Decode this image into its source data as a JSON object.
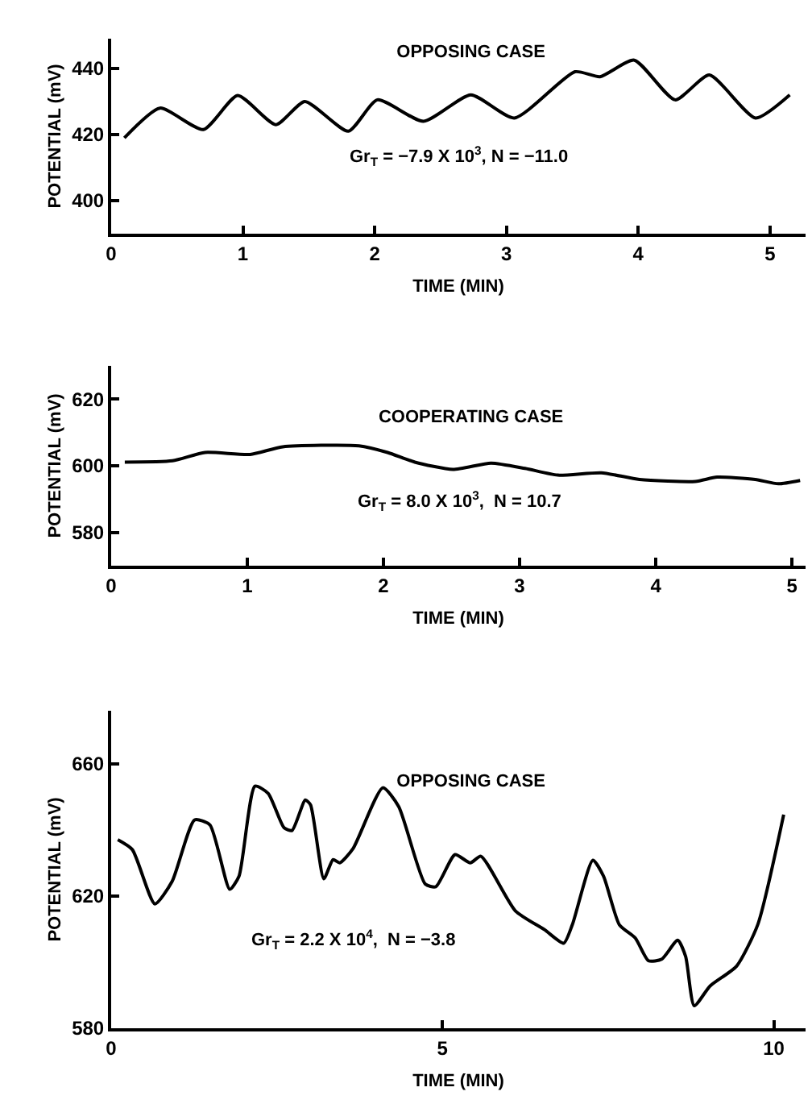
{
  "chart_data": [
    {
      "type": "line",
      "title": "OPPOSING CASE",
      "xlabel": "TIME (MIN)",
      "ylabel": "POTENTIAL (mV)",
      "xlim": [
        0,
        5.27
      ],
      "xticks": [
        0,
        1,
        2,
        3,
        4,
        5
      ],
      "ylim": [
        390,
        449
      ],
      "yticks": [
        400,
        420,
        440
      ],
      "grid": false,
      "line_style": "solid",
      "series": [
        {
          "color": "#000000",
          "x": [
            0.1,
            0.37,
            0.7,
            0.96,
            1.25,
            1.47,
            1.8,
            2.02,
            2.37,
            2.73,
            3.06,
            3.52,
            3.71,
            3.97,
            4.28,
            4.54,
            4.89,
            5.15
          ],
          "values": [
            419,
            428,
            421.5,
            431.8,
            423,
            430,
            421,
            430.5,
            424,
            432,
            425,
            439,
            437.5,
            442.5,
            430.5,
            438,
            425,
            432
          ]
        }
      ],
      "annotations": [
        "Gr$_{T}$ = −7.9 X 10$^{3}$, N = −11.0"
      ]
    },
    {
      "type": "line",
      "title": "COOPERATING CASE",
      "xlabel": "TIME (MIN)",
      "ylabel": "POTENTIAL (mV)",
      "xlim": [
        0,
        5.1
      ],
      "xticks": [
        0,
        1,
        2,
        3,
        4,
        5
      ],
      "ylim": [
        570,
        630
      ],
      "yticks": [
        580,
        600,
        620
      ],
      "grid": false,
      "line_style": "solid",
      "series": [
        {
          "color": "#000000",
          "x": [
            0.1,
            0.45,
            0.69,
            1.02,
            1.26,
            1.82,
            2.03,
            2.23,
            2.51,
            2.79,
            3.04,
            3.28,
            3.6,
            3.88,
            4.29,
            4.45,
            4.73,
            4.9,
            5.06
          ],
          "values": [
            601.1,
            601.5,
            604,
            603.4,
            605.7,
            606,
            604,
            601.1,
            598.9,
            600.8,
            599.2,
            597.2,
            597.9,
            595.9,
            595.3,
            596.6,
            595.9,
            594.6,
            595.6
          ]
        }
      ],
      "annotations": [
        "Gr$_{T}$ = 8.0 X 10$^{3}$,  N = 10.7"
      ]
    },
    {
      "type": "line",
      "title": "OPPOSING CASE",
      "xlabel": "TIME (MIN)",
      "ylabel": "POTENTIAL (mV)",
      "xlim": [
        0,
        10.48
      ],
      "xticks": [
        0,
        5,
        10
      ],
      "ylim": [
        580,
        676
      ],
      "yticks": [
        580,
        620,
        660
      ],
      "grid": false,
      "line_style": "solid",
      "series": [
        {
          "color": "#000000",
          "x": [
            0.1,
            0.32,
            0.66,
            0.92,
            1.26,
            1.49,
            1.79,
            1.93,
            2.17,
            2.37,
            2.61,
            2.73,
            2.93,
            3.01,
            3.21,
            3.35,
            3.45,
            3.65,
            4.1,
            4.34,
            4.74,
            4.9,
            5.19,
            5.42,
            5.58,
            6.1,
            6.54,
            6.83,
            6.96,
            7.27,
            7.43,
            7.67,
            7.91,
            8.11,
            8.31,
            8.55,
            8.67,
            8.8,
            9.04,
            9.44,
            9.76,
            10.15
          ],
          "values": [
            637,
            634,
            617.6,
            624.4,
            643,
            641.5,
            622,
            626,
            653.2,
            651,
            640.6,
            639.8,
            649,
            647.5,
            625.2,
            631,
            630,
            634.3,
            652.7,
            647,
            623.6,
            622.8,
            632.5,
            630,
            632,
            615.5,
            609.8,
            605.7,
            611.3,
            630.8,
            626,
            611.3,
            607.3,
            600.4,
            600.9,
            606.6,
            601.7,
            586.8,
            592.8,
            598.8,
            611.4,
            644.6
          ]
        }
      ],
      "annotations": [
        "Gr$_{T}$ = 2.2 X 10$^{4}$,  N = −3.8"
      ]
    }
  ]
}
